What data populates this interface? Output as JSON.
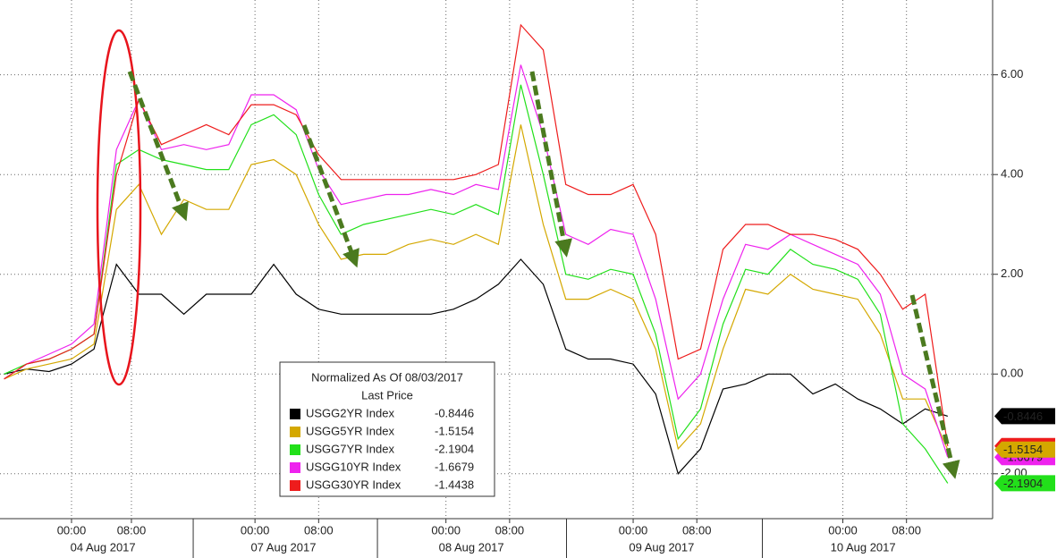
{
  "chart_data": {
    "type": "line",
    "legend_title": "Normalized As Of 08/03/2017",
    "legend_subtitle": "Last Price",
    "x": [
      -9,
      -6,
      -3,
      0,
      3,
      6,
      9,
      12,
      15,
      18,
      21,
      24,
      27,
      30,
      33,
      36,
      39,
      42,
      45,
      48,
      51,
      54,
      57,
      60,
      63,
      66,
      69,
      72,
      75,
      78,
      81,
      84,
      87,
      90,
      93,
      96,
      99,
      102,
      105,
      108,
      111,
      114,
      117
    ],
    "xlim": [
      -9.55,
      123
    ],
    "xticks": [
      {
        "value": 0,
        "label": "00:00"
      },
      {
        "value": 8,
        "label": "08:00"
      },
      {
        "value": 24.5,
        "label": "00:00"
      },
      {
        "value": 33,
        "label": "08:00"
      },
      {
        "value": 50,
        "label": "00:00"
      },
      {
        "value": 58.5,
        "label": "08:00"
      },
      {
        "value": 75,
        "label": "00:00"
      },
      {
        "value": 83.5,
        "label": "08:00"
      },
      {
        "value": 103,
        "label": "00:00"
      },
      {
        "value": 111.5,
        "label": "08:00"
      }
    ],
    "date_ticks": [
      {
        "value": 4.2,
        "label": "04 Aug 2017"
      },
      {
        "value": 28.3,
        "label": "07 Aug 2017"
      },
      {
        "value": 53.4,
        "label": "08 Aug 2017"
      },
      {
        "value": 78.8,
        "label": "09 Aug 2017"
      },
      {
        "value": 105.7,
        "label": "10 Aug 2017"
      }
    ],
    "ylim": [
      -2.9,
      7.5
    ],
    "yticks": [
      {
        "value": 6,
        "label": "6.00"
      },
      {
        "value": 4,
        "label": "4.00"
      },
      {
        "value": 2,
        "label": "2.00"
      },
      {
        "value": 0,
        "label": "0.00"
      },
      {
        "value": -2,
        "label": "-2.00"
      }
    ],
    "grid": true,
    "series": [
      {
        "name": "USGG2YR Index",
        "color": "#000000",
        "last_price": -0.8446,
        "values": [
          0.0,
          0.1,
          0.05,
          0.2,
          0.5,
          2.2,
          1.6,
          1.6,
          1.2,
          1.6,
          1.6,
          1.6,
          2.2,
          1.6,
          1.3,
          1.2,
          1.2,
          1.2,
          1.2,
          1.2,
          1.3,
          1.5,
          1.8,
          2.3,
          1.8,
          0.5,
          0.3,
          0.3,
          0.2,
          -0.4,
          -2.0,
          -1.5,
          -0.3,
          -0.2,
          0.0,
          0.0,
          -0.4,
          -0.2,
          -0.5,
          -0.7,
          -1.0,
          -0.7,
          -0.8446
        ]
      },
      {
        "name": "USGG5YR Index",
        "color": "#d4a800",
        "last_price": -1.5154,
        "values": [
          -0.1,
          0.1,
          0.2,
          0.3,
          0.6,
          3.3,
          3.8,
          2.8,
          3.5,
          3.3,
          3.3,
          4.2,
          4.3,
          4.0,
          3.0,
          2.3,
          2.4,
          2.4,
          2.6,
          2.7,
          2.6,
          2.8,
          2.6,
          5.0,
          3.0,
          1.5,
          1.5,
          1.7,
          1.5,
          0.5,
          -1.5,
          -1.0,
          0.5,
          1.7,
          1.6,
          2.0,
          1.7,
          1.6,
          1.5,
          0.8,
          -0.5,
          -0.5,
          -1.5154
        ]
      },
      {
        "name": "USGG7YR Index",
        "color": "#22e01a",
        "last_price": -2.1904,
        "values": [
          0.0,
          0.2,
          0.3,
          0.5,
          0.8,
          4.2,
          4.5,
          4.3,
          4.2,
          4.1,
          4.1,
          5.0,
          5.2,
          4.8,
          3.6,
          2.8,
          3.0,
          3.1,
          3.2,
          3.3,
          3.2,
          3.4,
          3.2,
          5.8,
          4.0,
          2.0,
          1.9,
          2.1,
          2.0,
          0.8,
          -1.3,
          -0.7,
          1.0,
          2.1,
          2.0,
          2.5,
          2.2,
          2.1,
          1.9,
          1.2,
          -1.0,
          -1.5,
          -2.1904
        ]
      },
      {
        "name": "USGG10YR Index",
        "color": "#ee22ee",
        "last_price": -1.6679,
        "values": [
          -0.1,
          0.2,
          0.4,
          0.6,
          1.0,
          4.5,
          5.5,
          4.5,
          4.6,
          4.5,
          4.6,
          5.6,
          5.6,
          5.3,
          4.1,
          3.4,
          3.5,
          3.6,
          3.6,
          3.7,
          3.6,
          3.8,
          3.7,
          6.2,
          4.8,
          2.8,
          2.6,
          2.9,
          2.8,
          1.5,
          -0.5,
          0.0,
          1.5,
          2.6,
          2.5,
          2.8,
          2.6,
          2.4,
          2.2,
          1.6,
          0.0,
          -0.3,
          -1.6679
        ]
      },
      {
        "name": "USGG30YR Index",
        "color": "#ee1c1c",
        "last_price": -1.4438,
        "values": [
          -0.1,
          0.2,
          0.3,
          0.5,
          0.8,
          4.0,
          5.5,
          4.6,
          4.8,
          5.0,
          4.8,
          5.4,
          5.4,
          5.2,
          4.4,
          3.9,
          3.9,
          3.9,
          3.9,
          3.9,
          3.9,
          4.0,
          4.2,
          7.0,
          6.5,
          3.8,
          3.6,
          3.6,
          3.8,
          2.8,
          0.3,
          0.5,
          2.5,
          3.0,
          3.0,
          2.8,
          2.8,
          2.7,
          2.5,
          2.0,
          1.3,
          1.6,
          -1.4438
        ]
      }
    ]
  }
}
